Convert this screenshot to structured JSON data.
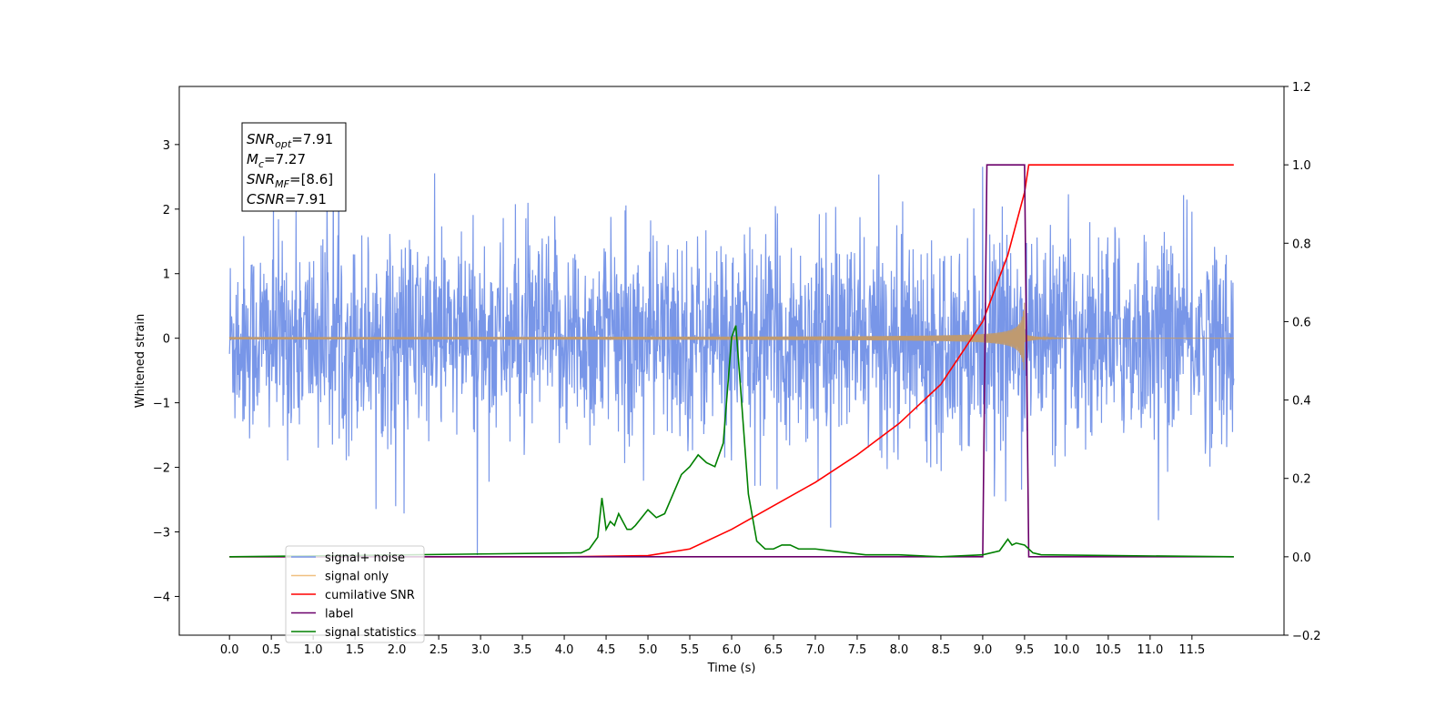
{
  "chart_data": {
    "type": "line",
    "xlabel": "Time (s)",
    "ylabel": "Whitened strain",
    "xlim": [
      -0.6,
      12.6
    ],
    "ylim": [
      -4.6,
      3.9
    ],
    "ylim_right": [
      -0.2,
      1.2
    ],
    "x_ticks": [
      "0.0",
      "0.5",
      "1.0",
      "1.5",
      "2.0",
      "2.5",
      "3.0",
      "3.5",
      "4.0",
      "4.5",
      "5.0",
      "5.5",
      "6.0",
      "6.5",
      "7.0",
      "7.5",
      "8.0",
      "8.5",
      "9.0",
      "9.5",
      "10.0",
      "10.5",
      "11.0",
      "11.5"
    ],
    "y_ticks_left": [
      "3",
      "2",
      "1",
      "0",
      "−1",
      "−2",
      "−3",
      "−4"
    ],
    "y_ticks_right": [
      "1.2",
      "1.0",
      "0.8",
      "0.6",
      "0.4",
      "0.2",
      "0.0",
      "−0.2"
    ],
    "grid": false,
    "legend_position": "lower-left",
    "annotation": {
      "snr_opt": {
        "base": "SNR",
        "sub": "opt",
        "value": "=7.91"
      },
      "mc": {
        "base": "M",
        "sub": "c",
        "value": "=7.27"
      },
      "snr_mf": {
        "base": "SNR",
        "sub": "MF",
        "value": "=[8.6]"
      },
      "csnr": {
        "base": "CSNR",
        "sub": "",
        "value": "=7.91"
      }
    },
    "series": [
      {
        "name": "signal+ noise",
        "color": "#7896e8",
        "axis": "left",
        "typical_abs_max": 1.5,
        "t_range": [
          0,
          12.0
        ]
      },
      {
        "name": "signal only",
        "color": "#f0c080",
        "axis": "left",
        "t_range": [
          0,
          12.0
        ],
        "peak_time": 9.5,
        "peak_amplitude": 0.55
      },
      {
        "name": "cumilative SNR",
        "color": "#ff0000",
        "axis": "right",
        "x": [
          0,
          4.0,
          5.0,
          5.5,
          6.0,
          6.5,
          7.0,
          7.5,
          8.0,
          8.5,
          9.0,
          9.3,
          9.5,
          9.55,
          12.0
        ],
        "y": [
          0,
          0.0,
          0.003,
          0.02,
          0.07,
          0.13,
          0.19,
          0.26,
          0.34,
          0.44,
          0.6,
          0.77,
          0.93,
          1.0,
          1.0
        ]
      },
      {
        "name": "label",
        "color": "#6a006a",
        "axis": "right",
        "x": [
          0,
          9.0,
          9.05,
          9.5,
          9.55,
          12.0
        ],
        "y": [
          0,
          0,
          1.0,
          1.0,
          0,
          0
        ]
      },
      {
        "name": "signal statistics",
        "color": "#008000",
        "axis": "right",
        "x": [
          0,
          4.2,
          4.3,
          4.4,
          4.45,
          4.5,
          4.55,
          4.6,
          4.65,
          4.75,
          4.8,
          4.85,
          5.0,
          5.1,
          5.2,
          5.3,
          5.4,
          5.5,
          5.6,
          5.7,
          5.8,
          5.9,
          6.0,
          6.05,
          6.1,
          6.2,
          6.3,
          6.4,
          6.5,
          6.6,
          6.7,
          6.8,
          7.0,
          7.2,
          7.4,
          7.6,
          8.0,
          8.5,
          9.0,
          9.2,
          9.3,
          9.35,
          9.4,
          9.5,
          9.6,
          9.7,
          12.0
        ],
        "y": [
          0,
          0.01,
          0.02,
          0.05,
          0.15,
          0.07,
          0.09,
          0.08,
          0.11,
          0.07,
          0.07,
          0.08,
          0.12,
          0.1,
          0.11,
          0.16,
          0.21,
          0.23,
          0.26,
          0.24,
          0.23,
          0.29,
          0.56,
          0.59,
          0.45,
          0.16,
          0.04,
          0.02,
          0.02,
          0.03,
          0.03,
          0.02,
          0.02,
          0.015,
          0.01,
          0.005,
          0.005,
          0.0,
          0.005,
          0.015,
          0.045,
          0.03,
          0.035,
          0.03,
          0.01,
          0.005,
          0.0
        ]
      }
    ]
  }
}
